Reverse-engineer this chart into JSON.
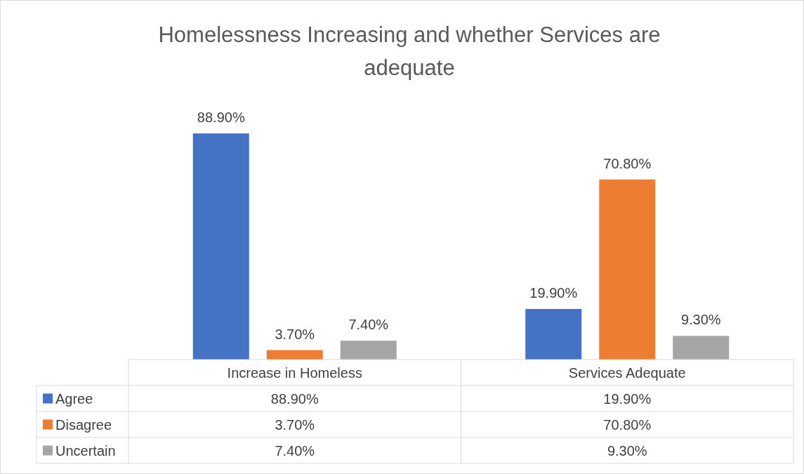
{
  "chart_data": {
    "type": "bar",
    "title": "Homelessness Increasing and whether Services are adequate",
    "categories": [
      "Increase in Homeless",
      "Services Adequate"
    ],
    "series": [
      {
        "name": "Agree",
        "color": "#4472c4",
        "values": [
          88.9,
          19.9
        ],
        "value_labels": [
          "88.90%",
          "19.90%"
        ]
      },
      {
        "name": "Disagree",
        "color": "#ed7d31",
        "values": [
          3.7,
          70.8
        ],
        "value_labels": [
          "3.70%",
          "70.80%"
        ]
      },
      {
        "name": "Uncertain",
        "color": "#a5a5a5",
        "values": [
          7.4,
          9.3
        ],
        "value_labels": [
          "7.40%",
          "9.30%"
        ]
      }
    ],
    "legend": "bottom",
    "grid": false
  }
}
